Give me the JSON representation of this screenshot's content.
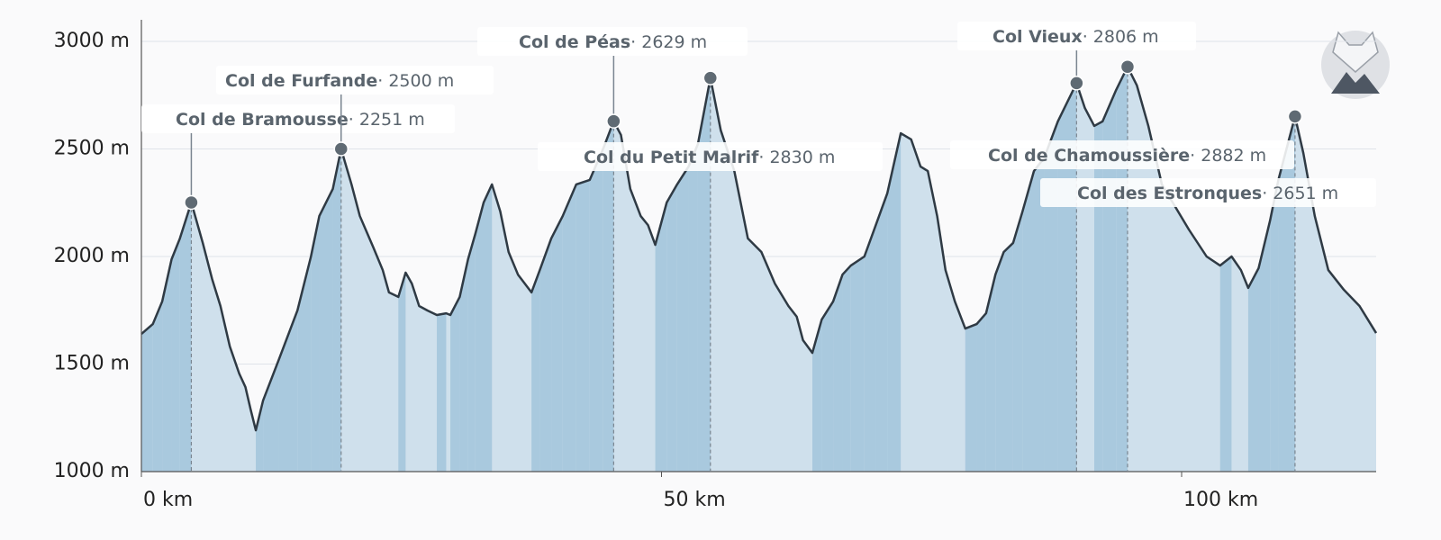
{
  "chart_data": {
    "type": "area",
    "x": [
      0,
      1.1,
      2.0,
      2.9,
      3.7,
      4.8,
      5.9,
      6.8,
      7.6,
      8.5,
      9.4,
      10.0,
      10.5,
      11.0,
      11.7,
      13.2,
      15.0,
      16.3,
      17.1,
      18.4,
      19.2,
      20.2,
      21.0,
      22.3,
      23.2,
      23.8,
      24.7,
      25.4,
      26.0,
      26.7,
      27.5,
      28.4,
      29.3,
      29.7,
      30.6,
      31.4,
      32.1,
      32.9,
      33.7,
      34.5,
      35.3,
      36.2,
      37.5,
      38.3,
      39.4,
      40.5,
      41.8,
      43.1,
      44.4,
      45.4,
      46.1,
      47.0,
      48.0,
      48.7,
      49.4,
      50.5,
      51.5,
      52.6,
      53.5,
      54.7,
      55.7,
      57.0,
      58.3,
      59.6,
      60.9,
      62.2,
      63.0,
      63.6,
      64.5,
      65.4,
      66.5,
      67.4,
      68.2,
      69.5,
      70.6,
      71.7,
      73.0,
      74.0,
      74.9,
      75.6,
      76.5,
      77.3,
      78.2,
      79.2,
      80.3,
      81.2,
      82.1,
      82.9,
      83.8,
      84.7,
      85.8,
      86.8,
      88.1,
      89.9,
      90.7,
      91.6,
      92.4,
      93.7,
      94.8,
      95.7,
      96.8,
      98.1,
      99.4,
      100.7,
      102.4,
      103.7,
      104.8,
      105.7,
      106.4,
      107.4,
      108.5,
      109.3,
      110.9,
      111.7,
      112.8,
      114.1,
      115.6,
      117.1,
      118.7
    ],
    "values": [
      1640,
      1686,
      1791,
      1987,
      2084,
      2251,
      2063,
      1895,
      1770,
      1582,
      1456,
      1393,
      1289,
      1192,
      1331,
      1519,
      1749,
      2000,
      2188,
      2314,
      2500,
      2335,
      2188,
      2042,
      1937,
      1833,
      1812,
      1925,
      1874,
      1770,
      1749,
      1728,
      1736,
      1728,
      1812,
      1987,
      2105,
      2251,
      2335,
      2209,
      2021,
      1916,
      1833,
      1937,
      2084,
      2188,
      2335,
      2356,
      2502,
      2629,
      2565,
      2314,
      2188,
      2146,
      2054,
      2251,
      2335,
      2418,
      2523,
      2830,
      2586,
      2397,
      2084,
      2021,
      1874,
      1770,
      1720,
      1611,
      1552,
      1707,
      1791,
      1916,
      1958,
      2000,
      2146,
      2293,
      2573,
      2544,
      2418,
      2397,
      2188,
      1937,
      1791,
      1665,
      1686,
      1736,
      1916,
      2021,
      2063,
      2209,
      2397,
      2460,
      2628,
      2806,
      2690,
      2607,
      2628,
      2774,
      2882,
      2795,
      2607,
      2335,
      2230,
      2125,
      2000,
      1958,
      2000,
      1937,
      1854,
      1946,
      2167,
      2356,
      2651,
      2481,
      2188,
      1937,
      1845,
      1770,
      1644
    ],
    "fill_color": "#cfe0ec",
    "ascent_color": "#a9c9de",
    "line_color": "#2f3a44",
    "xlim": [
      0,
      118.7
    ],
    "ylim": [
      1000,
      3000
    ],
    "xticks": [
      {
        "value": 0,
        "label": "0 km"
      },
      {
        "value": 50,
        "label": "50 km"
      },
      {
        "value": 100,
        "label": "100 km"
      }
    ],
    "yticks": [
      {
        "value": 1000,
        "label": "1000 m"
      },
      {
        "value": 1500,
        "label": "1500 m"
      },
      {
        "value": 2000,
        "label": "2000 m"
      },
      {
        "value": 2500,
        "label": "2500 m"
      },
      {
        "value": 3000,
        "label": "3000 m"
      }
    ],
    "grid": true,
    "annotations": [
      {
        "text": "Col de Bramousse",
        "x": 4.8,
        "value": 2251,
        "value_label": "· 2251 m"
      },
      {
        "text": "Col de Furfande",
        "x": 19.2,
        "value": 2500,
        "value_label": "· 2500 m"
      },
      {
        "text": "Col de Péas",
        "x": 45.4,
        "value": 2629,
        "value_label": "· 2629 m"
      },
      {
        "text": "Col du Petit Malrif",
        "x": 54.7,
        "value": 2830,
        "value_label": "· 2830 m"
      },
      {
        "text": "Col Vieux",
        "x": 89.9,
        "value": 2806,
        "value_label": "· 2806 m"
      },
      {
        "text": "Col de Chamoussière",
        "x": 94.8,
        "value": 2882,
        "value_label": "· 2882 m"
      },
      {
        "text": "Col des Estronques",
        "x": 110.9,
        "value": 2651,
        "value_label": "· 2651 m"
      }
    ]
  }
}
